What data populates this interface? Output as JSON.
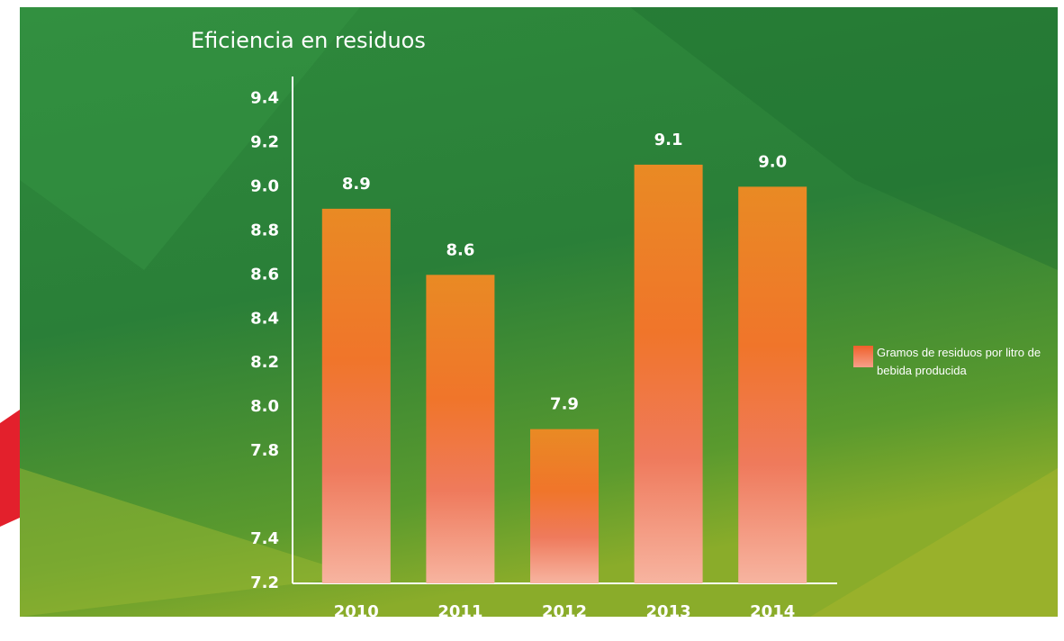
{
  "chart_data": {
    "type": "bar",
    "title": "Eficiencia en residuos",
    "categories": [
      "2010",
      "2011",
      "2012",
      "2013",
      "2014"
    ],
    "series": [
      {
        "name": "Gramos de residuos por litro de bebida producida",
        "color": "#f0602a",
        "values": [
          8.9,
          8.6,
          7.9,
          9.1,
          9.0
        ],
        "value_labels": [
          "8.9",
          "8.6",
          "7.9",
          "9.1",
          "9.0"
        ]
      }
    ],
    "ylim": [
      7.2,
      9.5
    ],
    "yticks": [
      {
        "value": 9.4,
        "label": "9.4"
      },
      {
        "value": 9.2,
        "label": "9.2"
      },
      {
        "value": 9,
        "label": "9.0"
      },
      {
        "value": 8.8,
        "label": "8.8"
      },
      {
        "value": 8.6,
        "label": "8.6"
      },
      {
        "value": 8.4,
        "label": "8.4"
      },
      {
        "value": 8.2,
        "label": "8.2"
      },
      {
        "value": 8,
        "label": "8.0"
      },
      {
        "value": 7.8,
        "label": "7.8"
      },
      {
        "value": 7.4,
        "label": "7.4"
      },
      {
        "value": 7.2,
        "label": "7.2"
      }
    ],
    "grid": false
  }
}
